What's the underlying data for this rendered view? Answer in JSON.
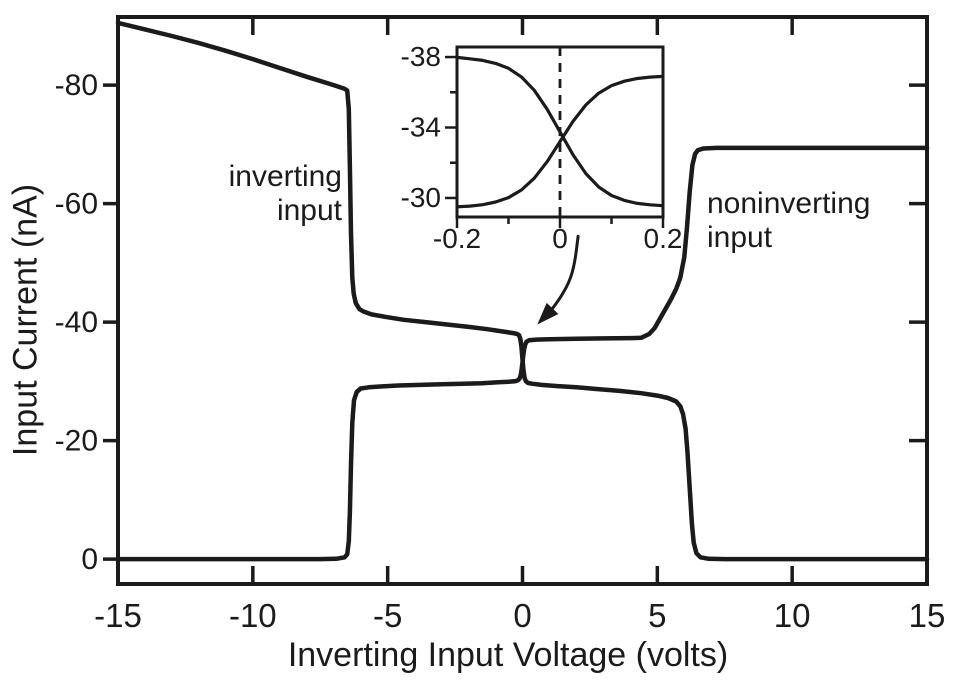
{
  "figure": {
    "background": "#ffffff",
    "ink": "#1c1a1b"
  },
  "chart_data": {
    "type": "line",
    "title": "",
    "xlabel": "Inverting Input Voltage (volts)",
    "ylabel": "Input Current (nA)",
    "xlim": [
      -15,
      15
    ],
    "ylim": [
      -91.5,
      4.2
    ],
    "y_axis_note": "negative values at top (axis runs 0 at bottom to -91 at top)",
    "grid": false,
    "legend": "none",
    "xticks": [
      -15,
      -10,
      -5,
      0,
      5,
      10,
      15
    ],
    "yticks": [
      -80,
      -60,
      -40,
      -20,
      0
    ],
    "series": [
      {
        "id": "inverting",
        "name": "inverting input",
        "x": [
          -15,
          -14,
          -13,
          -12,
          -11,
          -10,
          -9,
          -8,
          -7,
          -6.6,
          -6.5,
          -6.44,
          -6.4,
          -6.36,
          -6.31,
          -6.26,
          -6.18,
          -6.05,
          -5.9,
          -5.6,
          -5.1,
          -4.4,
          -3.6,
          -2.8,
          -2,
          -1.3,
          -0.7,
          -0.35,
          -0.2,
          -0.13,
          -0.08,
          -0.04,
          0,
          0.04,
          0.08,
          0.13,
          0.2,
          0.35,
          0.7,
          1.3,
          2,
          2.8,
          3.6,
          4.4,
          5,
          5.4,
          5.7,
          5.85,
          5.95,
          6.05,
          6.12,
          6.2,
          6.28,
          6.35,
          6.45,
          6.6,
          6.9,
          7.5,
          9,
          11,
          13,
          15
        ],
        "y": [
          -90.5,
          -89.4,
          -88.3,
          -87.1,
          -85.8,
          -84.4,
          -82.9,
          -81.4,
          -80,
          -79.4,
          -79.1,
          -76,
          -66,
          -55,
          -47.5,
          -44.8,
          -43.2,
          -42.2,
          -41.8,
          -41.3,
          -40.9,
          -40.4,
          -40,
          -39.6,
          -39.2,
          -38.8,
          -38.4,
          -38.15,
          -38,
          -37.8,
          -37.2,
          -35.9,
          -33.7,
          -31.7,
          -30.5,
          -30,
          -29.75,
          -29.6,
          -29.4,
          -29.2,
          -29,
          -28.7,
          -28.4,
          -28,
          -27.6,
          -27.2,
          -26.6,
          -25.8,
          -24.5,
          -22,
          -18,
          -12,
          -6,
          -2.8,
          -1,
          -0.3,
          -0.05,
          0,
          0,
          0,
          0,
          0
        ]
      },
      {
        "id": "noninverting",
        "name": "noninverting input",
        "x": [
          -15,
          -13,
          -11,
          -9,
          -7.5,
          -6.9,
          -6.6,
          -6.5,
          -6.44,
          -6.4,
          -6.36,
          -6.31,
          -6.25,
          -6.15,
          -6,
          -5.7,
          -5.2,
          -4.6,
          -3.8,
          -3,
          -2.2,
          -1.5,
          -0.9,
          -0.5,
          -0.25,
          -0.15,
          -0.1,
          -0.06,
          -0.03,
          0,
          0.03,
          0.06,
          0.1,
          0.15,
          0.25,
          0.5,
          1,
          2,
          3,
          4,
          4.4,
          4.7,
          4.9,
          5.1,
          5.3,
          5.5,
          5.7,
          5.85,
          6,
          6.1,
          6.2,
          6.3,
          6.4,
          6.5,
          6.7,
          7.2,
          9,
          11,
          13,
          15
        ],
        "y": [
          0,
          0,
          0,
          0,
          0,
          -0.05,
          -0.3,
          -0.8,
          -3,
          -8,
          -16,
          -23,
          -26.8,
          -28.2,
          -28.8,
          -29,
          -29.15,
          -29.3,
          -29.4,
          -29.5,
          -29.6,
          -29.7,
          -29.85,
          -29.95,
          -30.05,
          -30.25,
          -30.55,
          -31.2,
          -32.1,
          -33.2,
          -34.4,
          -35.4,
          -36.2,
          -36.7,
          -36.95,
          -37.05,
          -37.1,
          -37.2,
          -37.25,
          -37.3,
          -37.35,
          -38,
          -39,
          -40.6,
          -42.2,
          -43.8,
          -45.6,
          -47.5,
          -51,
          -56,
          -62,
          -66.5,
          -68.4,
          -69,
          -69.3,
          -69.4,
          -69.4,
          -69.4,
          -69.4,
          -69.4
        ]
      }
    ],
    "annotations": [
      {
        "id": "inverting-label",
        "text": "inverting\ninput",
        "align": "right"
      },
      {
        "id": "noninverting-label",
        "text": "noninverting\ninput",
        "align": "left"
      }
    ],
    "arrow": {
      "from_xy": [
        2.06,
        -54.5
      ],
      "to_xy": [
        0.55,
        -39.6
      ]
    },
    "inset": {
      "xlim": [
        -0.2,
        0.2
      ],
      "ylim": [
        -38.57,
        -28.92
      ],
      "xticks": [
        -0.2,
        0,
        0.2
      ],
      "xminorticks": [
        -0.1,
        0.1
      ],
      "yticks": [
        -38,
        -34,
        -30
      ],
      "yminorticks": [
        -36,
        -32
      ],
      "dashed_vline_x": 0,
      "series": [
        {
          "id": "inverting",
          "name": "inverting input (detail)",
          "x": [
            -0.2,
            -0.175,
            -0.15,
            -0.125,
            -0.1,
            -0.075,
            -0.05,
            -0.025,
            0,
            0.025,
            0.05,
            0.075,
            0.1,
            0.125,
            0.15,
            0.175,
            0.2
          ],
          "y": [
            -37.98,
            -37.9,
            -37.81,
            -37.64,
            -37.36,
            -36.87,
            -36.11,
            -35.04,
            -33.75,
            -32.46,
            -31.39,
            -30.63,
            -30.14,
            -29.86,
            -29.69,
            -29.61,
            -29.56
          ]
        },
        {
          "id": "noninverting",
          "name": "noninverting input (detail)",
          "x": [
            -0.2,
            -0.175,
            -0.15,
            -0.125,
            -0.1,
            -0.075,
            -0.05,
            -0.025,
            0,
            0.025,
            0.05,
            0.075,
            0.1,
            0.125,
            0.15,
            0.175,
            0.2
          ],
          "y": [
            -29.5,
            -29.54,
            -29.62,
            -29.77,
            -30.02,
            -30.45,
            -31.12,
            -32.06,
            -33.2,
            -34.34,
            -35.28,
            -35.95,
            -36.38,
            -36.63,
            -36.78,
            -36.86,
            -36.9
          ]
        }
      ]
    }
  }
}
